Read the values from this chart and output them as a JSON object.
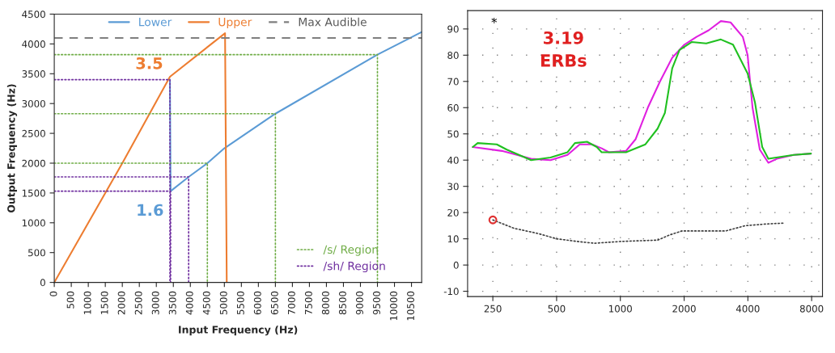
{
  "chart_data": [
    {
      "type": "line",
      "xlabel": "Input Frequency (Hz)",
      "ylabel": "Output Frequency (Hz)",
      "xlim": [
        0,
        10800
      ],
      "ylim": [
        0,
        4500
      ],
      "xticks": [
        0,
        500,
        1000,
        1500,
        2000,
        2500,
        3000,
        3500,
        4000,
        4500,
        5000,
        5500,
        6000,
        6500,
        7000,
        7500,
        8000,
        8500,
        9000,
        9500,
        10000,
        10500
      ],
      "yticks": [
        0,
        500,
        1000,
        1500,
        2000,
        2500,
        3000,
        3500,
        4000,
        4500
      ],
      "legend": "top",
      "series": [
        {
          "name": "Lower",
          "color": "#5b9bd5",
          "line_style": "solid",
          "x": [
            3400,
            3420,
            3950,
            4500,
            5000,
            6500,
            9500,
            10800
          ],
          "values": [
            3400,
            1530,
            1770,
            2000,
            2250,
            2830,
            3820,
            4200
          ]
        },
        {
          "name": "Upper",
          "color": "#ed7d31",
          "line_style": "solid",
          "x": [
            0,
            2000,
            3400,
            5020,
            5070
          ],
          "values": [
            0,
            2000,
            3450,
            4180,
            0
          ]
        },
        {
          "name": "/s/ Region",
          "color": "#70ad47",
          "line_style": "dotted",
          "x": [
            0,
            9500,
            9500,
            null,
            0,
            6500,
            6500,
            null,
            0,
            4500,
            4500
          ],
          "values": [
            3820,
            3820,
            0,
            null,
            2830,
            2830,
            0,
            null,
            2000,
            2000,
            0
          ]
        },
        {
          "name": "/sh/ Region",
          "color": "#7030a0",
          "line_style": "dotted",
          "x": [
            0,
            3400,
            3400,
            null,
            0,
            3950,
            3950,
            null,
            0,
            3420,
            3420
          ],
          "values": [
            3400,
            3400,
            0,
            null,
            1770,
            1770,
            0,
            null,
            1530,
            1530,
            0
          ]
        }
      ],
      "ref_lines": [
        {
          "axis": "y",
          "value": 4100,
          "label": "Max Audible",
          "color": "#7f7f7f",
          "line_style": "dashed"
        }
      ],
      "annotations": [
        {
          "text": "3.5",
          "x": 3400,
          "y": 3450
        },
        {
          "text": "1.6",
          "x": 3420,
          "y": 1530
        }
      ]
    },
    {
      "type": "line",
      "log": "x",
      "grid": true,
      "xlim": [
        190,
        9000
      ],
      "ylim": [
        -12,
        97
      ],
      "xticks": [
        250,
        500,
        1000,
        2000,
        4000,
        8000
      ],
      "yticks": [
        -10,
        0,
        10,
        20,
        30,
        40,
        50,
        60,
        70,
        80,
        90
      ],
      "series": [
        {
          "color": "#e020e0",
          "line_style": "solid",
          "x": [
            201,
            276,
            379,
            468,
            563,
            643,
            734,
            816,
            883,
            1063,
            1181,
            1348,
            1539,
            1757,
            2005,
            2289,
            2612,
            2982,
            3315,
            3784,
            3989,
            4207,
            4554,
            4996,
            5482,
            6594,
            7938
          ],
          "values": [
            45,
            43.5,
            40.5,
            40,
            42,
            46,
            46,
            44.5,
            43,
            43.5,
            48,
            60,
            70,
            79,
            84,
            87,
            89.5,
            93,
            92.5,
            87,
            80,
            60,
            44,
            39,
            40.5,
            42,
            42.5
          ]
        },
        {
          "color": "#20c020",
          "line_style": "solid",
          "x": [
            201,
            212,
            261,
            291,
            379,
            468,
            563,
            610,
            696,
            774,
            816,
            1063,
            1313,
            1499,
            1623,
            1757,
            1902,
            2170,
            2544,
            2982,
            3403,
            3989,
            4320,
            4675,
            4996,
            6594,
            7938
          ],
          "values": [
            45,
            46.5,
            46,
            44,
            40,
            41,
            43,
            46.5,
            47,
            45,
            43,
            43,
            46,
            52,
            58,
            75,
            82,
            85,
            84.5,
            86,
            84,
            73,
            62,
            45,
            40.5,
            42,
            42.5
          ]
        },
        {
          "color": "#404040",
          "line_style": "dotted",
          "x": [
            250,
            315,
            410,
            500,
            626,
            753,
            1008,
            1499,
            1711,
            1954,
            3144,
            3885,
            4801,
            5936
          ],
          "values": [
            17.2,
            14,
            12,
            10,
            9,
            8.3,
            9,
            9.5,
            11.5,
            13,
            13,
            15,
            15.6,
            16
          ]
        },
        {
          "type": "scatter",
          "color": "#e03030",
          "marker": "circle",
          "x": [
            250
          ],
          "values": [
            17.2
          ]
        }
      ],
      "annotations": [
        "*",
        "3.19\nERBs"
      ]
    }
  ]
}
